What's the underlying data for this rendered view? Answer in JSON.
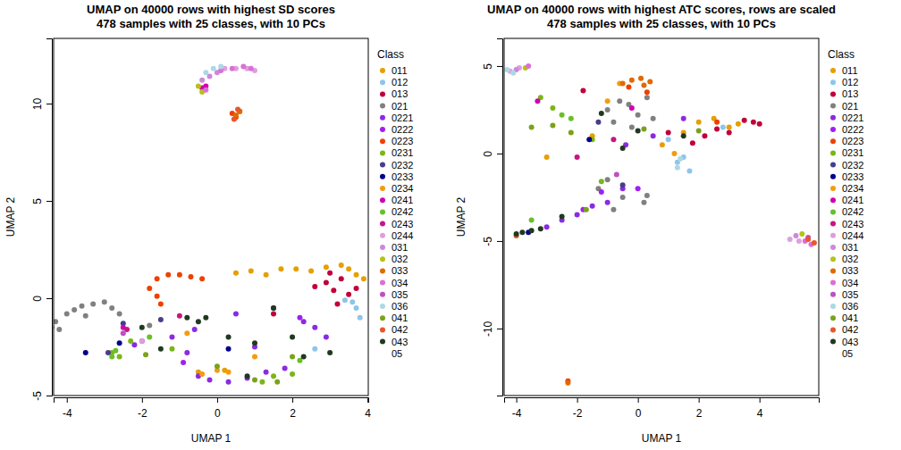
{
  "chart_data": [
    {
      "type": "scatter",
      "title": [
        "UMAP on 40000 rows with highest SD scores",
        "478 samples with 25 classes, with 10 PCs"
      ],
      "x_label": "UMAP 1",
      "y_label": "UMAP 2",
      "xlim": [
        -4.35,
        4.02
      ],
      "ylim": [
        -5.0,
        13.35
      ],
      "xticks": [
        -4,
        -2,
        0,
        2,
        4
      ],
      "yticks": [
        -5,
        0,
        5,
        10
      ],
      "legend": "right",
      "legend_title": "Class",
      "marker": "circle",
      "series": [
        {
          "name": "011",
          "color": "#E69F00",
          "x": [
            0.5,
            0.9,
            1.3,
            1.7,
            2.1,
            2.5,
            2.9,
            3.3,
            3.5,
            3.7,
            3.9,
            -0.5,
            0.2
          ],
          "values": [
            1.3,
            1.4,
            1.2,
            1.5,
            1.5,
            1.4,
            1.6,
            1.7,
            1.5,
            1.2,
            1.0,
            -3.8,
            -3.7
          ]
        },
        {
          "name": "012",
          "color": "#8EC5EA",
          "x": [
            3.7,
            3.8,
            3.6,
            2.6,
            3.4
          ],
          "values": [
            -0.5,
            -1.0,
            -0.2,
            -2.6,
            -0.1
          ]
        },
        {
          "name": "013",
          "color": "#C1003A",
          "x": [
            2.9,
            3.1,
            3.3,
            3.5,
            3.7,
            3.2,
            2.6,
            3.0,
            1.5
          ],
          "values": [
            0.8,
            0.4,
            1.0,
            0.2,
            0.5,
            -0.3,
            0.6,
            1.3,
            -0.8
          ]
        },
        {
          "name": "021",
          "color": "#808080",
          "x": [
            -4.4,
            -4.3,
            -4.0,
            -3.8,
            -3.6,
            -3.3,
            -3.0,
            -2.8,
            -2.6,
            -4.2,
            -3.5,
            -1.8
          ],
          "values": [
            -1.5,
            -1.2,
            -0.8,
            -0.6,
            -0.4,
            -0.3,
            -0.2,
            -0.5,
            -0.8,
            -1.6,
            -0.9,
            -1.4
          ]
        },
        {
          "name": "0221",
          "color": "#8A2BE2",
          "x": [
            -1.2,
            -0.8,
            -0.5,
            -0.2,
            0.3,
            0.8,
            1.3,
            1.8,
            2.3,
            2.6,
            -0.6,
            1.0,
            0.5,
            -2.2,
            2.9
          ],
          "values": [
            -2.0,
            -2.8,
            -4.0,
            -4.2,
            -4.3,
            -4.1,
            -3.8,
            -3.6,
            -1.2,
            -1.5,
            -1.6,
            -2.5,
            -0.8,
            -2.4,
            -2.0
          ]
        },
        {
          "name": "0222",
          "color": "#A020F0",
          "x": [
            -0.9,
            1.5,
            2.2,
            -2.0
          ],
          "values": [
            -3.3,
            -0.5,
            -1.0,
            -2.2
          ]
        },
        {
          "name": "0223",
          "color": "#EE4000",
          "x": [
            -1.6,
            -1.3,
            -1.0,
            -0.7,
            -0.4,
            -1.8,
            -1.6,
            -1.5,
            0.4,
            0.5,
            0.6
          ],
          "values": [
            1.0,
            1.2,
            1.2,
            1.1,
            1.0,
            0.5,
            0.1,
            -0.3,
            9.5,
            9.3,
            9.6
          ]
        },
        {
          "name": "0231",
          "color": "#7CB518",
          "x": [
            -2.8,
            -2.6,
            -1.2,
            1.2,
            1.5,
            2.0,
            -2.3
          ],
          "values": [
            -2.8,
            -3.0,
            -2.6,
            -4.3,
            -4.0,
            -3.9,
            -2.2
          ]
        },
        {
          "name": "0232",
          "color": "#483D8B",
          "x": [
            -2.9,
            -2.5,
            -1.5
          ],
          "values": [
            -2.8,
            -1.3,
            -1.1
          ]
        },
        {
          "name": "0233",
          "color": "#00008B",
          "x": [
            -3.5,
            -2.6,
            0.3
          ],
          "values": [
            -2.8,
            -2.3,
            -2.6
          ]
        },
        {
          "name": "0234",
          "color": "#F39C12",
          "x": [
            -0.4,
            0.0,
            0.3,
            -0.8,
            1.0
          ],
          "values": [
            -3.9,
            -3.7,
            -3.8,
            -1.8,
            -3.0
          ]
        },
        {
          "name": "0241",
          "color": "#D100B0",
          "x": [
            -2.5,
            -0.4,
            -0.3
          ],
          "values": [
            -1.5,
            10.8,
            10.9
          ]
        },
        {
          "name": "0242",
          "color": "#6BBE2A",
          "x": [
            -2.8,
            -2.7,
            -1.8,
            2.2
          ],
          "values": [
            -3.0,
            -2.7,
            -2.0,
            -3.2
          ]
        },
        {
          "name": "0243",
          "color": "#C71585",
          "x": [
            -2.4,
            -1.0
          ],
          "values": [
            -1.6,
            -0.9
          ]
        },
        {
          "name": "0244",
          "color": "#DDA0DD",
          "x": [
            0.2,
            0.5,
            0.8,
            1.0,
            -2.0
          ],
          "values": [
            11.8,
            11.8,
            11.8,
            11.7,
            -2.2
          ]
        },
        {
          "name": "031",
          "color": "#CC88DD",
          "x": [
            -0.4,
            -0.2,
            0.0
          ],
          "values": [
            11.2,
            11.4,
            11.6
          ]
        },
        {
          "name": "032",
          "color": "#B5C21A",
          "x": [
            -0.4,
            -0.5
          ],
          "values": [
            10.6,
            10.9
          ]
        },
        {
          "name": "033",
          "color": "#E06A00",
          "x": [
            0.5,
            0.6
          ],
          "values": [
            9.4,
            9.6
          ]
        },
        {
          "name": "034",
          "color": "#DA70D6",
          "x": [
            0.1,
            0.4,
            0.7,
            0.9,
            -0.3
          ],
          "values": [
            11.7,
            11.8,
            11.9,
            11.8,
            10.7
          ]
        },
        {
          "name": "035",
          "color": "#C050C0",
          "x": [
            -2.5
          ],
          "values": [
            -1.8
          ]
        },
        {
          "name": "036",
          "color": "#ADD8E6",
          "x": [
            -0.3,
            -0.1,
            0.1
          ],
          "values": [
            11.6,
            11.8,
            11.9
          ]
        },
        {
          "name": "041",
          "color": "#7BA21A",
          "x": [
            0.0,
            1.0,
            1.6,
            2.0,
            -1.9
          ],
          "values": [
            -3.5,
            -4.2,
            -4.3,
            -3.0,
            -2.9
          ]
        },
        {
          "name": "042",
          "color": "#E8562A",
          "x": [
            0.45,
            0.55
          ],
          "values": [
            9.2,
            9.7
          ]
        },
        {
          "name": "043",
          "color": "#1F3A1F",
          "x": [
            -2.0,
            -1.5,
            -0.8,
            -0.5,
            0.3,
            1.0,
            1.5,
            2.3,
            3.0,
            -0.3,
            0.8,
            2.0
          ],
          "values": [
            -1.5,
            -2.6,
            -1.0,
            -1.2,
            -2.0,
            -2.3,
            -0.5,
            -3.0,
            -2.8,
            -1.0,
            -4.0,
            -2.0
          ]
        },
        {
          "name": "05",
          "color": "#FFFFFF",
          "x": [],
          "values": []
        }
      ]
    },
    {
      "type": "scatter",
      "title": [
        "UMAP on 40000 rows with highest ATC scores, rows are scaled",
        "478 samples with 25 classes, with 10 PCs"
      ],
      "x_label": "UMAP 1",
      "y_label": "UMAP 2",
      "xlim": [
        -4.4,
        5.95
      ],
      "ylim": [
        -13.83,
        6.58
      ],
      "xticks": [
        -4,
        -2,
        0,
        2,
        4
      ],
      "yticks": [
        -10,
        -5,
        0,
        5
      ],
      "legend": "right",
      "legend_title": "Class",
      "marker": "circle",
      "series": [
        {
          "name": "011",
          "color": "#E69F00",
          "x": [
            1.5,
            2.0,
            2.5,
            3.0,
            3.3,
            -1.5,
            -3.0,
            0.8
          ],
          "values": [
            1.2,
            1.8,
            2.0,
            1.5,
            1.7,
            1.0,
            -0.2,
            0.5
          ]
        },
        {
          "name": "012",
          "color": "#8EC5EA",
          "x": [
            1.3,
            1.5,
            1.7,
            1.0,
            2.8
          ],
          "values": [
            -0.5,
            -0.2,
            -1.0,
            0.8,
            1.5
          ]
        },
        {
          "name": "013",
          "color": "#C1003A",
          "x": [
            2.2,
            2.6,
            3.0,
            3.5,
            3.8,
            4.0,
            1.0,
            1.8,
            -1.8
          ],
          "values": [
            1.0,
            1.4,
            1.2,
            1.9,
            1.8,
            1.7,
            1.2,
            0.6,
            3.6
          ]
        },
        {
          "name": "021",
          "color": "#808080",
          "x": [
            -1.0,
            -0.6,
            -0.3,
            0.0,
            0.3,
            0.5,
            -0.8,
            -0.2,
            -1.3,
            -1.0,
            -0.5,
            0.2,
            -0.8,
            0.3
          ],
          "values": [
            2.5,
            3.0,
            2.8,
            2.2,
            3.2,
            2.0,
            1.8,
            1.5,
            -2.0,
            -1.5,
            -2.5,
            -2.8,
            -3.2,
            -2.4
          ]
        },
        {
          "name": "0221",
          "color": "#8A2BE2",
          "x": [
            -2.5,
            -2.0,
            -1.5,
            -1.0,
            -0.5,
            -3.0,
            0.5,
            -0.4,
            1.5
          ],
          "values": [
            -3.8,
            -3.5,
            -3.0,
            -2.8,
            -2.0,
            -4.2,
            1.0,
            0.5,
            2.0
          ]
        },
        {
          "name": "0222",
          "color": "#A020F0",
          "x": [
            -1.8,
            -1.2,
            0.0
          ],
          "values": [
            -3.2,
            -2.2,
            -2.0
          ]
        },
        {
          "name": "0223",
          "color": "#EE4000",
          "x": [
            -0.3,
            0.3,
            -2.3,
            2.6
          ],
          "values": [
            3.8,
            3.5,
            -13.0,
            1.8
          ]
        },
        {
          "name": "0231",
          "color": "#7CB518",
          "x": [
            -3.2,
            -2.8,
            -1.2,
            -1.5
          ],
          "values": [
            3.2,
            2.6,
            -1.6,
            0.8
          ]
        },
        {
          "name": "0232",
          "color": "#483D8B",
          "x": [
            -1.3,
            -0.5
          ],
          "values": [
            1.8,
            -1.8
          ]
        },
        {
          "name": "0233",
          "color": "#00008B",
          "x": [
            -1.6,
            -3.6
          ],
          "values": [
            0.8,
            -4.5
          ]
        },
        {
          "name": "0234",
          "color": "#F39C12",
          "x": [
            -0.6,
            -1.0,
            1.2
          ],
          "values": [
            4.0,
            3.0,
            0.0
          ]
        },
        {
          "name": "0241",
          "color": "#D100B0",
          "x": [
            -0.2,
            -3.3
          ],
          "values": [
            2.6,
            3.0
          ]
        },
        {
          "name": "0242",
          "color": "#6BBE2A",
          "x": [
            -2.5,
            -2.2,
            -3.5
          ],
          "values": [
            2.2,
            2.0,
            -3.8
          ]
        },
        {
          "name": "0243",
          "color": "#C71585",
          "x": [
            -2.0,
            -0.8
          ],
          "values": [
            -0.2,
            0.8
          ]
        },
        {
          "name": "0244",
          "color": "#DDA0DD",
          "x": [
            -4.2,
            -3.9,
            5.0,
            5.3
          ],
          "values": [
            4.7,
            4.9,
            -4.9,
            -5.0
          ]
        },
        {
          "name": "031",
          "color": "#CC88DD",
          "x": [
            -4.0,
            5.2
          ],
          "values": [
            4.8,
            -4.7
          ]
        },
        {
          "name": "032",
          "color": "#B5C21A",
          "x": [
            -3.7,
            5.4
          ],
          "values": [
            4.9,
            -4.6
          ]
        },
        {
          "name": "033",
          "color": "#E06A00",
          "x": [
            -0.5,
            -0.2,
            0.1,
            0.4,
            0.2,
            -2.3
          ],
          "values": [
            4.0,
            4.2,
            4.3,
            4.1,
            3.9,
            -13.1
          ]
        },
        {
          "name": "034",
          "color": "#DA70D6",
          "x": [
            5.5,
            5.7,
            -3.6
          ],
          "values": [
            -5.0,
            -5.2,
            5.0
          ]
        },
        {
          "name": "035",
          "color": "#C050C0",
          "x": [
            5.6,
            -0.7
          ],
          "values": [
            -4.8,
            -1.2
          ]
        },
        {
          "name": "036",
          "color": "#ADD8E6",
          "x": [
            -4.1,
            -4.3,
            1.3,
            1.4
          ],
          "values": [
            4.6,
            4.8,
            -0.8,
            -0.3
          ]
        },
        {
          "name": "041",
          "color": "#7BA21A",
          "x": [
            -2.8,
            -2.2,
            -1.7,
            -3.5,
            2.0,
            0.2
          ],
          "values": [
            1.6,
            1.2,
            -3.2,
            1.5,
            1.3,
            1.4
          ]
        },
        {
          "name": "042",
          "color": "#E8562A",
          "x": [
            -4.0,
            5.6,
            5.8
          ],
          "values": [
            -4.7,
            -4.9,
            -5.1
          ]
        },
        {
          "name": "043",
          "color": "#1F3A1F",
          "x": [
            -4.0,
            -3.8,
            -3.5,
            -3.2,
            -0.5,
            0.0,
            -2.5,
            1.5,
            -1.2
          ],
          "values": [
            -4.6,
            -4.5,
            -4.4,
            -4.3,
            0.3,
            1.3,
            -3.6,
            1.0,
            2.3
          ]
        },
        {
          "name": "05",
          "color": "#FFFFFF",
          "x": [],
          "values": []
        }
      ]
    }
  ]
}
